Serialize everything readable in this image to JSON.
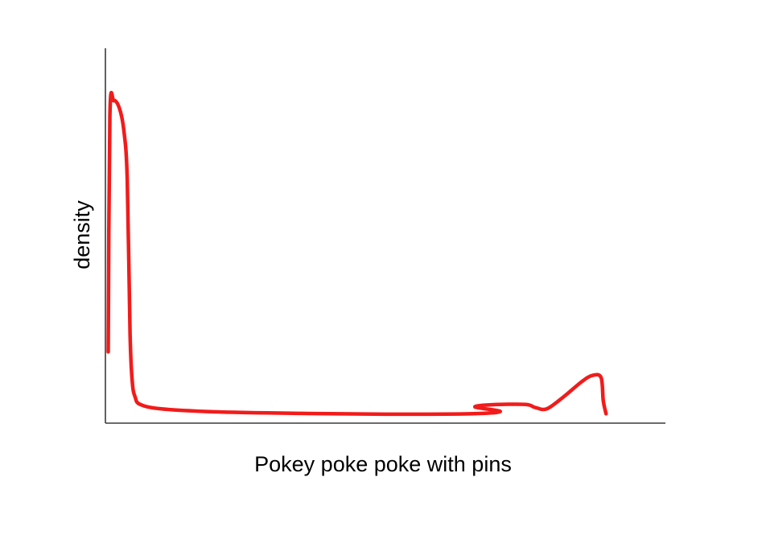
{
  "chart_data": {
    "type": "line",
    "title": "",
    "xlabel": "Pokey poke poke with pins",
    "ylabel": "density",
    "grid": false,
    "legend": "none",
    "ticks": false,
    "color": "#f21b1b",
    "series": [
      {
        "points": [
          [
            0.5,
            19
          ],
          [
            0.8,
            82
          ],
          [
            1.5,
            86
          ],
          [
            2.5,
            84
          ],
          [
            3.3,
            78
          ],
          [
            3.9,
            65
          ],
          [
            4.4,
            24
          ],
          [
            4.8,
            11
          ],
          [
            5.3,
            7
          ],
          [
            6.2,
            5
          ],
          [
            10,
            3.8
          ],
          [
            20,
            3
          ],
          [
            35,
            2.6
          ],
          [
            50,
            2.4
          ],
          [
            65,
            2.5
          ],
          [
            70.5,
            3.1
          ],
          [
            66,
            4.3
          ],
          [
            69,
            4.9
          ],
          [
            75,
            5
          ],
          [
            76.7,
            4.2
          ],
          [
            78.8,
            3.8
          ],
          [
            81.8,
            7
          ],
          [
            85,
            11
          ],
          [
            86.9,
            12.7
          ],
          [
            88.5,
            12.2
          ],
          [
            88.9,
            6
          ],
          [
            89.4,
            2.5
          ]
        ]
      }
    ]
  }
}
